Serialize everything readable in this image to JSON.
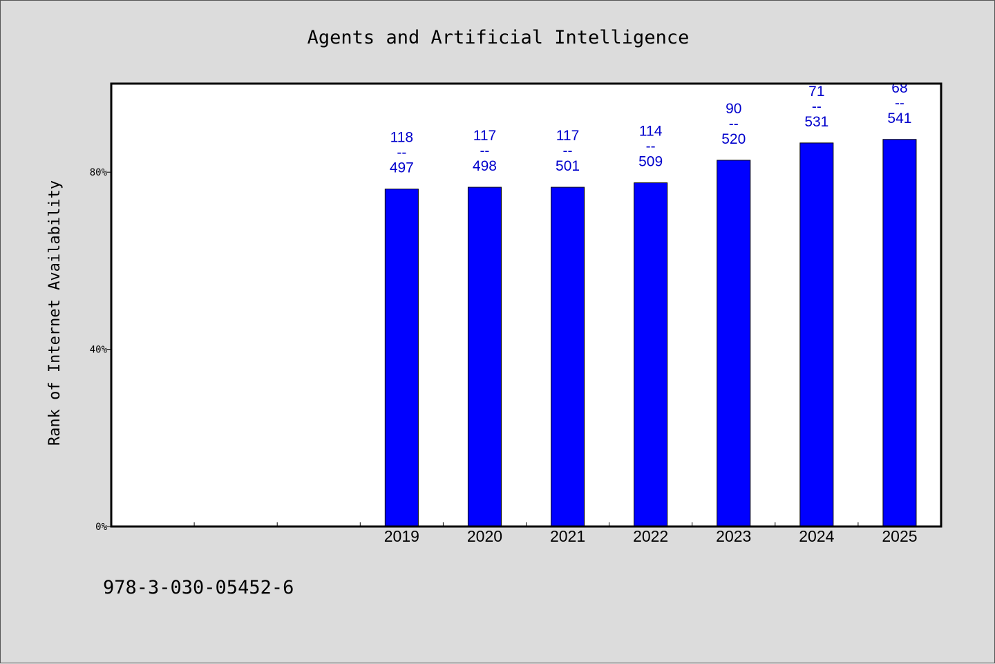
{
  "chart_data": {
    "type": "bar",
    "title": "Agents and Artificial Intelligence",
    "xlabel": "",
    "ylabel": "Rank of Internet Availability",
    "categories": [
      "",
      "",
      "",
      "2019",
      "2020",
      "2021",
      "2022",
      "2023",
      "2024",
      "2025"
    ],
    "values": [
      null,
      null,
      null,
      76.2,
      76.6,
      76.6,
      77.6,
      82.7,
      86.6,
      87.4
    ],
    "data_labels": [
      null,
      null,
      null,
      {
        "rank": "118",
        "sep": "--",
        "total": "497"
      },
      {
        "rank": "117",
        "sep": "--",
        "total": "498"
      },
      {
        "rank": "117",
        "sep": "--",
        "total": "501"
      },
      {
        "rank": "114",
        "sep": "--",
        "total": "509"
      },
      {
        "rank": "90",
        "sep": "--",
        "total": "520"
      },
      {
        "rank": "71",
        "sep": "--",
        "total": "531"
      },
      {
        "rank": "68",
        "sep": "--",
        "total": "541"
      }
    ],
    "yticks": [
      0,
      40,
      80
    ],
    "ytick_labels": [
      "0%",
      "40%",
      "80%"
    ],
    "ylim": [
      0,
      100
    ],
    "grid": false,
    "bar_color": "#0000ff",
    "label_color": "#0000cc",
    "background_color": "#dcdcdc",
    "plot_background_color": "#ffffff"
  },
  "footnote": "978-3-030-05452-6"
}
